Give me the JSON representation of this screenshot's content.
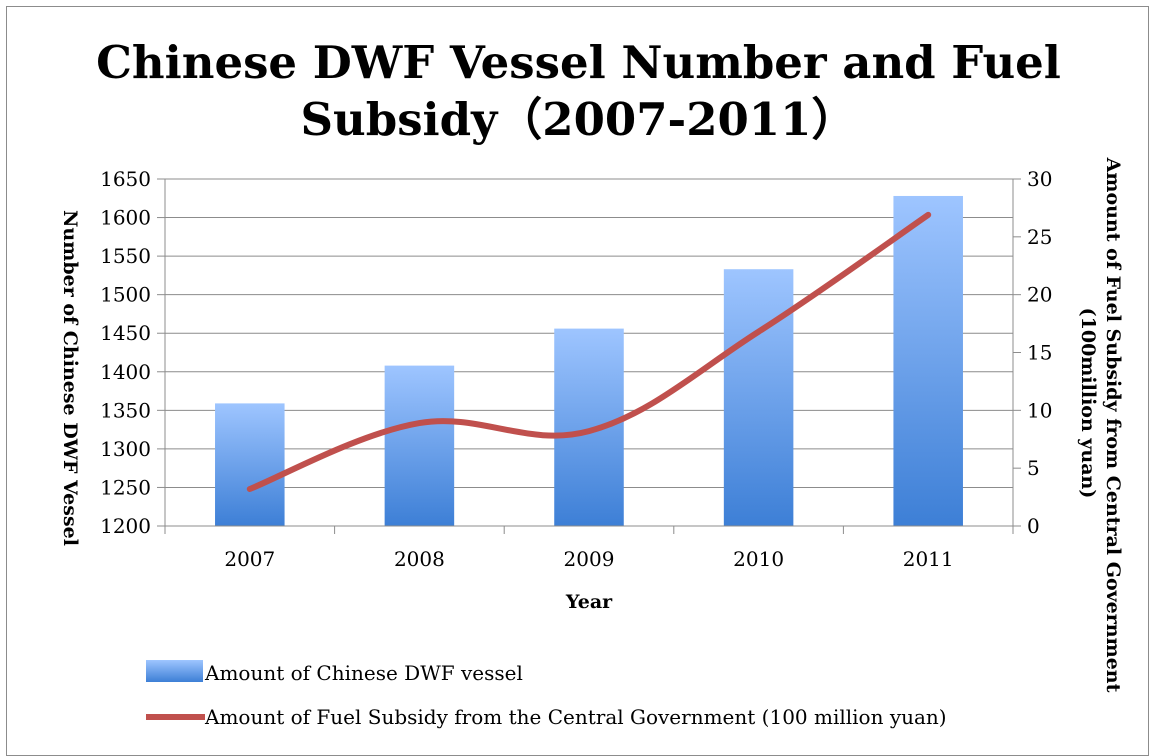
{
  "chart_data": {
    "type": "bar+line",
    "title_line1": "Chinese DWF Vessel Number and Fuel",
    "title_line2": "Subsidy（2007-2011）",
    "xlabel": "Year",
    "ylabel_left": "Number of Chinese DWF Vessel",
    "ylabel_right_line1": "Amount of Fuel Subsidy from Central Government",
    "ylabel_right_line2": "(100million yuan)",
    "categories": [
      "2007",
      "2008",
      "2009",
      "2010",
      "2011"
    ],
    "left_axis": {
      "min": 1200,
      "max": 1650,
      "step": 50,
      "ticks": [
        "1200",
        "1250",
        "1300",
        "1350",
        "1400",
        "1450",
        "1500",
        "1550",
        "1600",
        "1650"
      ]
    },
    "right_axis": {
      "min": 0,
      "max": 30,
      "step": 5,
      "ticks": [
        "0",
        "5",
        "10",
        "15",
        "20",
        "25",
        "30"
      ]
    },
    "series": [
      {
        "name": "Amount of Chinese DWF vessel",
        "type": "bar",
        "axis": "left",
        "values": [
          1359,
          1408,
          1456,
          1533,
          1628
        ],
        "color_top": "#9ec5ff",
        "color_bottom": "#3d7fd6"
      },
      {
        "name": "Amount of Fuel Subsidy from the Central Government (100 million yuan)",
        "type": "line",
        "axis": "right",
        "values": [
          3.2,
          8.9,
          8.2,
          16.8,
          26.9
        ],
        "color": "#c0504d"
      }
    ],
    "grid": true,
    "legend_position": "bottom"
  }
}
